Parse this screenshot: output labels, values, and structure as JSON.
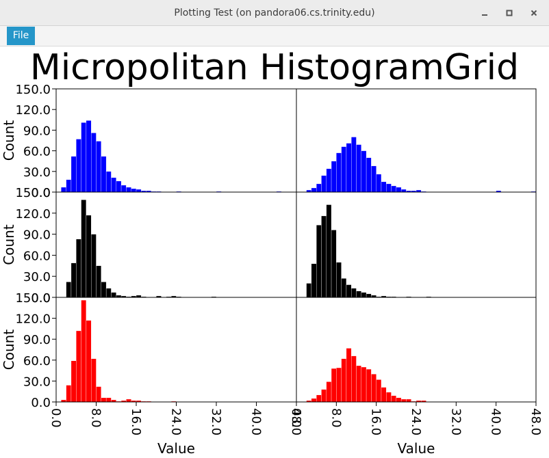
{
  "window": {
    "title": "Plotting Test (on pandora06.cs.trinity.edu)"
  },
  "menu": {
    "file_label": "File"
  },
  "icons": {
    "minimize": "minimize-icon",
    "maximize": "maximize-icon",
    "close": "close-icon"
  },
  "chart_data": {
    "type": "bar",
    "title": "Micropolitan HistogramGrid",
    "grid": {
      "rows": 3,
      "cols": 2
    },
    "xlabel": "Value",
    "ylabel": "Count",
    "xlim": [
      0,
      48
    ],
    "ylim": [
      0,
      150
    ],
    "xticks": [
      "0.0",
      "8.0",
      "16.0",
      "24.0",
      "32.0",
      "40.0",
      "48.0"
    ],
    "yticks": [
      "0.0",
      "30.0",
      "60.0",
      "90.0",
      "120.0",
      "150.0"
    ],
    "bin_width": 1,
    "panels": [
      {
        "row": 0,
        "col": 0,
        "color": "#0000ff",
        "bin_start": 1,
        "counts": [
          7,
          18,
          52,
          77,
          101,
          104,
          86,
          74,
          52,
          30,
          21,
          16,
          10,
          7,
          5,
          4,
          2,
          2,
          1,
          1,
          0,
          0,
          0,
          1,
          0,
          0,
          0,
          0,
          0,
          0,
          0,
          1,
          0,
          0,
          0,
          0,
          0,
          0,
          0,
          0,
          0,
          0,
          0,
          1
        ]
      },
      {
        "row": 0,
        "col": 1,
        "color": "#0000ff",
        "bin_start": 2,
        "counts": [
          3,
          6,
          12,
          24,
          34,
          45,
          57,
          66,
          71,
          80,
          69,
          60,
          50,
          38,
          26,
          15,
          12,
          9,
          7,
          4,
          2,
          2,
          3,
          1,
          0,
          0,
          0,
          0,
          0,
          0,
          0,
          0,
          0,
          0,
          0,
          0,
          0,
          0,
          2,
          0,
          0,
          0,
          0,
          0,
          0,
          1
        ]
      },
      {
        "row": 1,
        "col": 0,
        "color": "#000000",
        "bin_start": 2,
        "counts": [
          22,
          49,
          83,
          139,
          117,
          90,
          45,
          22,
          13,
          7,
          3,
          2,
          1,
          2,
          3,
          1,
          0,
          0,
          2,
          0,
          1,
          2,
          1,
          0,
          0,
          0,
          0,
          0,
          0,
          1
        ]
      },
      {
        "row": 1,
        "col": 1,
        "color": "#000000",
        "bin_start": 2,
        "counts": [
          20,
          48,
          103,
          116,
          132,
          96,
          50,
          27,
          18,
          13,
          9,
          7,
          5,
          3,
          1,
          2,
          1,
          1,
          0,
          0,
          1,
          0,
          0,
          0,
          1
        ]
      },
      {
        "row": 2,
        "col": 0,
        "color": "#ff0000",
        "bin_start": 1,
        "counts": [
          3,
          24,
          59,
          102,
          146,
          117,
          62,
          22,
          6,
          6,
          3,
          1,
          2,
          4,
          2,
          2,
          1,
          1,
          0,
          0,
          0,
          0,
          1
        ]
      },
      {
        "row": 2,
        "col": 1,
        "color": "#ff0000",
        "bin_start": 2,
        "counts": [
          2,
          5,
          10,
          18,
          29,
          48,
          49,
          62,
          77,
          66,
          52,
          50,
          47,
          40,
          32,
          21,
          14,
          9,
          6,
          4,
          4,
          1,
          2,
          2
        ]
      }
    ]
  }
}
